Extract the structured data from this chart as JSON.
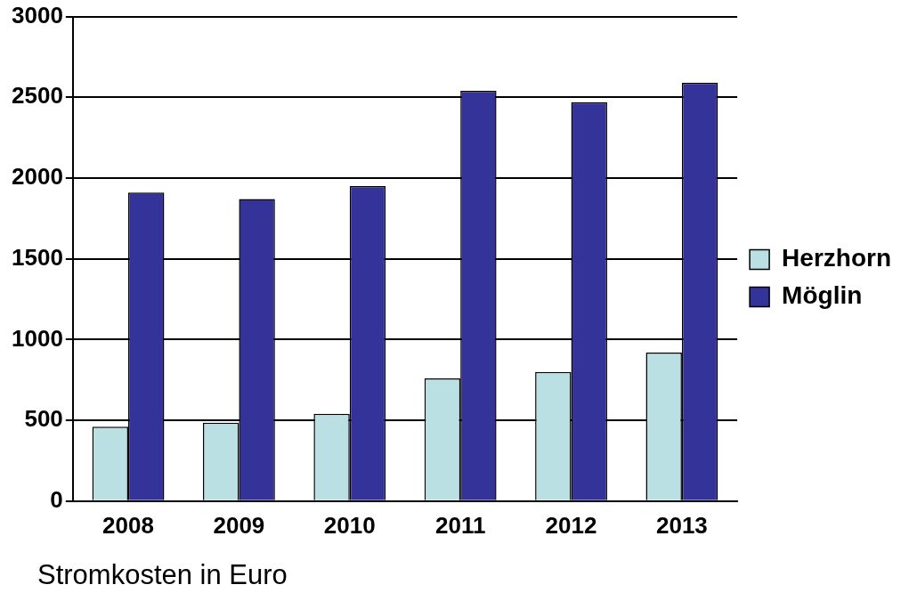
{
  "chart_data": {
    "type": "bar",
    "categories": [
      "2008",
      "2009",
      "2010",
      "2011",
      "2012",
      "2013"
    ],
    "series": [
      {
        "name": "Herzhorn",
        "color": "#bbe0e3",
        "values": [
          460,
          485,
          540,
          760,
          800,
          920
        ]
      },
      {
        "name": "Möglin",
        "color": "#333399",
        "values": [
          1910,
          1870,
          1950,
          2540,
          2470,
          2590
        ]
      }
    ],
    "ylim": [
      0,
      3000
    ],
    "yticks": [
      0,
      500,
      1000,
      1500,
      2000,
      2500,
      3000
    ],
    "grid": "y",
    "legend": "right",
    "annotations": [
      "Stromkosten in Euro"
    ]
  }
}
